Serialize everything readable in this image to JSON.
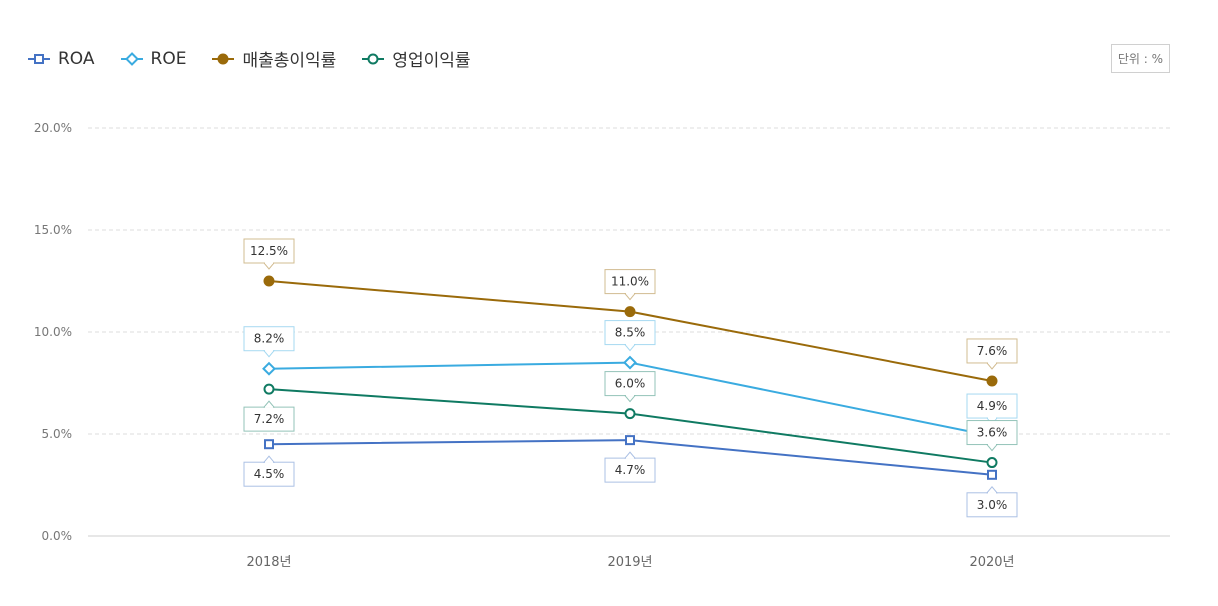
{
  "unit_label": "단위 : %",
  "chart_data": {
    "type": "line",
    "categories": [
      "2018년",
      "2019년",
      "2020년"
    ],
    "ylim": [
      0,
      20
    ],
    "yticks": [
      "0.0%",
      "5.0%",
      "10.0%",
      "15.0%",
      "20.0%"
    ],
    "ytick_values": [
      0,
      5,
      10,
      15,
      20
    ],
    "grid": true,
    "legend_position": "top-left",
    "series": [
      {
        "name": "ROA",
        "values": [
          4.5,
          4.7,
          3.0
        ],
        "labels": [
          "4.5%",
          "4.7%",
          "3.0%"
        ],
        "color": "#4472c4",
        "marker": "square",
        "label_pos": [
          "below",
          "below",
          "below"
        ]
      },
      {
        "name": "ROE",
        "values": [
          8.2,
          8.5,
          4.9
        ],
        "labels": [
          "8.2%",
          "8.5%",
          "4.9%"
        ],
        "color": "#3aabe0",
        "marker": "diamond",
        "label_pos": [
          "above",
          "above",
          "above"
        ]
      },
      {
        "name": "매출총이익률",
        "values": [
          12.5,
          11.0,
          7.6
        ],
        "labels": [
          "12.5%",
          "11.0%",
          "7.6%"
        ],
        "color": "#9a6a0a",
        "marker": "dot",
        "label_pos": [
          "above",
          "above",
          "above"
        ]
      },
      {
        "name": "영업이익률",
        "values": [
          7.2,
          6.0,
          3.6
        ],
        "labels": [
          "7.2%",
          "6.0%",
          "3.6%"
        ],
        "color": "#0f7a62",
        "marker": "circle",
        "label_pos": [
          "below",
          "above",
          "above"
        ]
      }
    ]
  }
}
